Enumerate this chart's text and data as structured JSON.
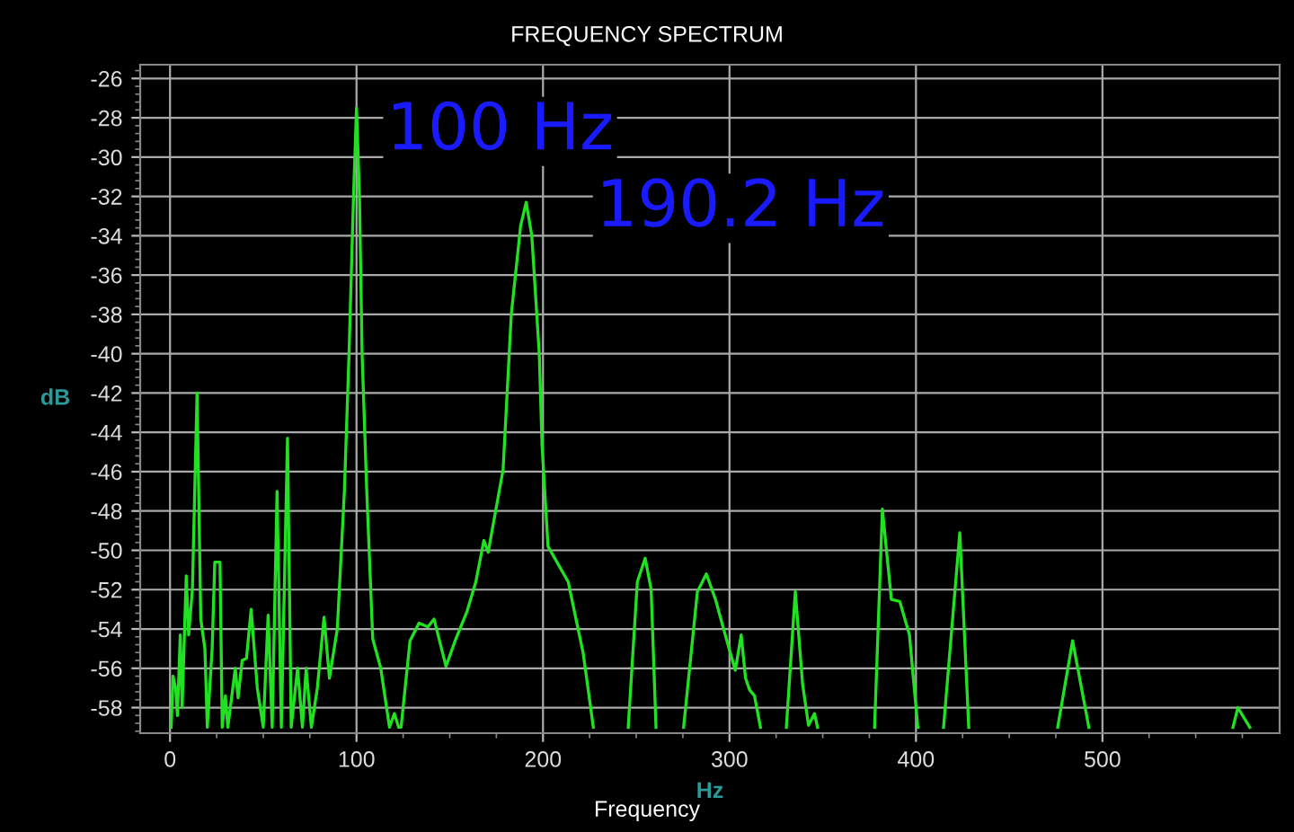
{
  "chart_data": {
    "type": "line",
    "title": "FREQUENCY SPECTRUM",
    "xlabel": "Hz",
    "ylabel": "dB",
    "subtitle": "Frequency",
    "annotations": [
      {
        "text": "100 Hz",
        "x": 100,
        "y": -27.5
      },
      {
        "text": "190.2 Hz",
        "x": 191,
        "y": -32.3
      }
    ],
    "series": [
      {
        "color": "#22e022",
        "x": [
          0.6,
          1.6,
          3,
          4,
          5.5,
          6.5,
          8.7,
          10,
          12,
          14.5,
          16.5,
          18.7,
          20,
          22.6,
          24,
          26.8,
          28,
          29.7,
          31,
          35,
          36.5,
          38.7,
          41,
          43.5,
          46.8,
          50,
          52.6,
          54.8,
          57.4,
          59.7,
          63,
          65,
          68.4,
          71,
          73,
          75.8,
          79,
          82.6,
          85.5,
          89.7,
          93.5,
          96,
          98.4,
          100,
          101.6,
          103,
          105.5,
          108.7,
          113,
          117.7,
          120.3,
          122.6,
          123.9,
          128.7,
          133.5,
          138.3,
          141.6,
          148,
          152.9,
          159.3,
          164,
          168.3,
          170.6,
          178.6,
          183,
          188,
          191,
          194,
          198,
          199.5,
          202.7,
          213.5,
          221.5,
          227,
          236,
          245.7,
          250.6,
          254.8,
          258,
          260.6,
          268,
          275.4,
          282.8,
          287.6,
          292.5,
          298.9,
          303.1,
          306.3,
          308.6,
          310.8,
          313.4,
          316.6,
          323,
          330.5,
          335.3,
          339.2,
          342.4,
          345.6,
          347.2,
          360,
          377.8,
          382,
          386.8,
          391.3,
          396.5,
          401,
          408,
          414.8,
          423.5,
          428.3,
          450,
          476,
          484,
          492.7,
          530,
          570,
          572.6,
          579
        ],
        "values": [
          -59,
          -56.4,
          -57,
          -58.4,
          -54.3,
          -58,
          -51.3,
          -54.3,
          -52,
          -42,
          -53.5,
          -55,
          -59,
          -55,
          -50.6,
          -50.6,
          -59,
          -57.4,
          -59,
          -56,
          -57.5,
          -55.6,
          -55.5,
          -53,
          -57,
          -59,
          -53.3,
          -59,
          -47,
          -59,
          -44.3,
          -59,
          -56,
          -59,
          -56,
          -59,
          -57,
          -53.4,
          -56.5,
          -54,
          -47,
          -40,
          -32,
          -27.5,
          -32,
          -40,
          -47,
          -54.5,
          -56,
          -59,
          -58.3,
          -59,
          -59,
          -54.6,
          -53.7,
          -53.9,
          -53.5,
          -55.9,
          -54.6,
          -53.1,
          -51.6,
          -49.5,
          -50.1,
          -45.9,
          -38,
          -33.5,
          -32.3,
          -34,
          -40,
          -44.7,
          -49.8,
          -51.6,
          -55.2,
          -59,
          null,
          -59,
          -51.6,
          -50.4,
          -52,
          -59,
          null,
          -59,
          -52.1,
          -51.2,
          -52.5,
          -54.7,
          -56.1,
          -54.3,
          -56.5,
          -57.1,
          -57.4,
          -59,
          null,
          -59,
          -52.1,
          -56.8,
          -58.9,
          -58.3,
          -59,
          null,
          -59,
          -47.9,
          -52.5,
          -52.6,
          -54.3,
          -59,
          null,
          -59,
          -49.1,
          -59,
          null,
          -59,
          -54.6,
          -59,
          null,
          -59,
          -58,
          -59
        ]
      }
    ],
    "xlim": [
      -16,
      595
    ],
    "ylim": [
      -59.3,
      -25.3
    ],
    "xticks": [
      0,
      100,
      200,
      300,
      400,
      500
    ],
    "yticks": [
      -26,
      -28,
      -30,
      -32,
      -34,
      -36,
      -38,
      -40,
      -42,
      -44,
      -46,
      -48,
      -50,
      -52,
      -54,
      -56,
      -58
    ],
    "grid": true,
    "legend": false
  }
}
